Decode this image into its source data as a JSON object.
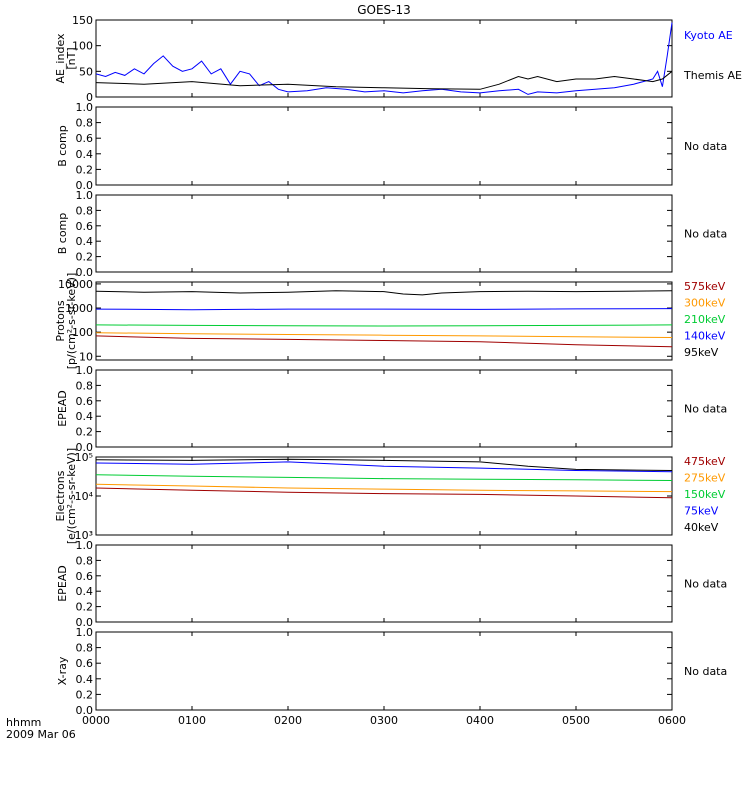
{
  "title": "GOES-13",
  "colors": {
    "kyoto": "#0000ff",
    "themis": "#000000",
    "e_575": "#a00000",
    "e_300": "#ff9900",
    "e_210": "#00cc33",
    "e_140": "#0000ff",
    "e_95": "#000000",
    "axis": "#000000"
  },
  "x_axis": {
    "ticks": [
      "0000",
      "0100",
      "0200",
      "0300",
      "0400",
      "0500",
      "0600"
    ],
    "corner_label_1": "hhmm",
    "corner_label_2": "2009 Mar 06"
  },
  "no_data_text": "No data",
  "chart_data": [
    {
      "type": "line",
      "panel": "ae",
      "ylabel_1": "AE_index",
      "ylabel_2": "[nT]",
      "ylim": [
        0,
        150
      ],
      "yticks": [
        "0",
        "50",
        "100",
        "150"
      ],
      "xlim": [
        0,
        6
      ],
      "series": [
        {
          "name": "Kyoto AE",
          "color": "#0000ff",
          "x": [
            0,
            0.1,
            0.2,
            0.3,
            0.4,
            0.5,
            0.6,
            0.7,
            0.8,
            0.9,
            1.0,
            1.1,
            1.2,
            1.3,
            1.4,
            1.5,
            1.6,
            1.7,
            1.8,
            1.9,
            2.0,
            2.2,
            2.4,
            2.6,
            2.8,
            3.0,
            3.2,
            3.4,
            3.6,
            3.8,
            4.0,
            4.2,
            4.4,
            4.5,
            4.6,
            4.8,
            5.0,
            5.2,
            5.4,
            5.6,
            5.7,
            5.8,
            5.85,
            5.9,
            5.95,
            6.0
          ],
          "y": [
            45,
            40,
            48,
            42,
            55,
            45,
            65,
            80,
            60,
            50,
            55,
            70,
            45,
            55,
            25,
            50,
            45,
            22,
            30,
            15,
            10,
            12,
            18,
            15,
            10,
            12,
            8,
            12,
            15,
            10,
            8,
            12,
            15,
            5,
            10,
            8,
            12,
            15,
            18,
            25,
            30,
            35,
            50,
            20,
            80,
            145
          ]
        },
        {
          "name": "Themis AE",
          "color": "#000000",
          "x": [
            0,
            0.5,
            1.0,
            1.5,
            2.0,
            2.5,
            3.0,
            3.5,
            4.0,
            4.2,
            4.4,
            4.5,
            4.6,
            4.8,
            5.0,
            5.2,
            5.4,
            5.6,
            5.8,
            5.9,
            6.0
          ],
          "y": [
            28,
            25,
            30,
            22,
            25,
            20,
            18,
            16,
            15,
            25,
            40,
            35,
            40,
            30,
            35,
            35,
            40,
            35,
            30,
            35,
            50
          ]
        }
      ]
    },
    {
      "type": "empty",
      "panel": "b1",
      "ylabel_1": "B comp",
      "ylim": [
        0,
        1
      ],
      "yticks": [
        "0.0",
        "0.2",
        "0.4",
        "0.6",
        "0.8",
        "1.0"
      ],
      "no_data": "No data"
    },
    {
      "type": "empty",
      "panel": "b2",
      "ylabel_1": "B comp",
      "ylim": [
        0,
        1
      ],
      "yticks": [
        "0.0",
        "0.2",
        "0.4",
        "0.6",
        "0.8",
        "1.0"
      ],
      "no_data": "No data"
    },
    {
      "type": "line",
      "panel": "protons",
      "scale": "log",
      "ylabel_1": "Protons",
      "ylabel_2": "[p/(cm²-s-sr-keV)]",
      "ylim": [
        7,
        12000
      ],
      "yticks": [
        "10",
        "100",
        "1000",
        "10000"
      ],
      "xlim": [
        0,
        6
      ],
      "series": [
        {
          "name": "575keV",
          "color": "#a00000",
          "x": [
            0,
            1,
            2,
            3,
            4,
            5,
            6
          ],
          "y": [
            70,
            55,
            50,
            45,
            40,
            30,
            25
          ]
        },
        {
          "name": "300keV",
          "color": "#ff9900",
          "x": [
            0,
            1,
            2,
            3,
            4,
            5,
            6
          ],
          "y": [
            95,
            85,
            80,
            75,
            70,
            65,
            60
          ]
        },
        {
          "name": "210keV",
          "color": "#00cc33",
          "x": [
            0,
            1,
            2,
            3,
            4,
            5,
            6
          ],
          "y": [
            200,
            190,
            185,
            180,
            185,
            190,
            200
          ]
        },
        {
          "name": "140keV",
          "color": "#0000ff",
          "x": [
            0,
            1,
            2,
            3,
            4,
            5,
            6
          ],
          "y": [
            900,
            850,
            900,
            900,
            880,
            920,
            950
          ]
        },
        {
          "name": "95keV",
          "color": "#000000",
          "x": [
            0,
            0.5,
            1.0,
            1.5,
            2.0,
            2.5,
            3.0,
            3.2,
            3.4,
            3.6,
            4.0,
            4.5,
            5.0,
            5.5,
            6.0
          ],
          "y": [
            5000,
            4500,
            4800,
            4200,
            4500,
            5200,
            4800,
            3800,
            3500,
            4200,
            4800,
            5000,
            4800,
            5000,
            5200
          ]
        }
      ]
    },
    {
      "type": "empty",
      "panel": "epead1",
      "ylabel_1": "EPEAD",
      "ylim": [
        0,
        1
      ],
      "yticks": [
        "0.0",
        "0.2",
        "0.4",
        "0.6",
        "0.8",
        "1.0"
      ],
      "no_data": "No data"
    },
    {
      "type": "line",
      "panel": "electrons",
      "scale": "log",
      "ylabel_1": "Electrons",
      "ylabel_2": "[e/(cm²-s-sr-keV)]",
      "ylim": [
        1000,
        100000
      ],
      "yticks": [
        "10³",
        "10⁴",
        "10⁵"
      ],
      "xlim": [
        0,
        6
      ],
      "series": [
        {
          "name": "475keV",
          "color": "#a00000",
          "x": [
            0,
            1,
            2,
            3,
            4,
            5,
            6
          ],
          "y": [
            16000,
            14000,
            12500,
            11500,
            11000,
            10000,
            9000
          ]
        },
        {
          "name": "275keV",
          "color": "#ff9900",
          "x": [
            0,
            1,
            2,
            3,
            4,
            5,
            6
          ],
          "y": [
            20000,
            18000,
            16000,
            15000,
            14000,
            13500,
            13000
          ]
        },
        {
          "name": "150keV",
          "color": "#00cc33",
          "x": [
            0,
            1,
            2,
            3,
            4,
            5,
            6
          ],
          "y": [
            35000,
            32000,
            30000,
            28000,
            27000,
            26000,
            25000
          ]
        },
        {
          "name": "75keV",
          "color": "#0000ff",
          "x": [
            0,
            1,
            2,
            3,
            4,
            5,
            6
          ],
          "y": [
            70000,
            65000,
            75000,
            58000,
            52000,
            45000,
            42000
          ]
        },
        {
          "name": "40keV",
          "color": "#000000",
          "x": [
            0,
            1,
            2,
            2.5,
            3,
            4,
            4.5,
            5,
            6
          ],
          "y": [
            85000,
            82000,
            88000,
            85000,
            82000,
            75000,
            58000,
            48000,
            45000
          ]
        }
      ]
    },
    {
      "type": "empty",
      "panel": "epead2",
      "ylabel_1": "EPEAD",
      "ylim": [
        0,
        1
      ],
      "yticks": [
        "0.0",
        "0.2",
        "0.4",
        "0.6",
        "0.8",
        "1.0"
      ],
      "no_data": "No data"
    },
    {
      "type": "empty",
      "panel": "xray",
      "ylabel_1": "X-ray",
      "ylim": [
        0,
        1
      ],
      "yticks": [
        "0.0",
        "0.2",
        "0.4",
        "0.6",
        "0.8",
        "1.0"
      ],
      "no_data": "No data"
    }
  ]
}
